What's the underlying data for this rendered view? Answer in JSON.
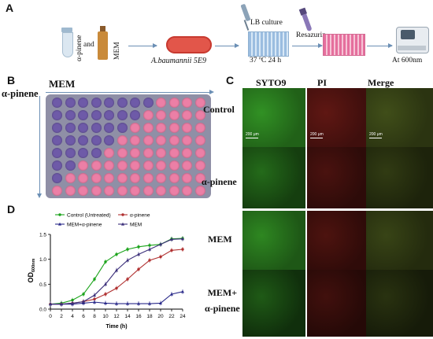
{
  "panels": {
    "a": "A",
    "b": "B",
    "c": "C",
    "d": "D"
  },
  "workflow": {
    "alpha_pinene": "α-pinene",
    "and": "and",
    "mem": "MEM",
    "bacterium": "A.baumannii 5E9",
    "lb_culture": "LB culture",
    "incubation": "37 ºC 24 h",
    "resazurin": "Resazurin",
    "readout": "At 600nm"
  },
  "plate": {
    "x_label": "MEM",
    "y_label": "α-pinene",
    "rows": [
      [
        "p",
        "p",
        "p",
        "p",
        "p",
        "p",
        "p",
        "p",
        "k",
        "k",
        "k",
        "k"
      ],
      [
        "p",
        "p",
        "p",
        "p",
        "p",
        "p",
        "p",
        "k",
        "k",
        "k",
        "k",
        "k"
      ],
      [
        "p",
        "p",
        "p",
        "p",
        "p",
        "p",
        "k",
        "k",
        "k",
        "k",
        "k",
        "k"
      ],
      [
        "p",
        "p",
        "p",
        "p",
        "p",
        "k",
        "k",
        "k",
        "k",
        "k",
        "k",
        "k"
      ],
      [
        "p",
        "p",
        "p",
        "p",
        "k",
        "k",
        "k",
        "k",
        "k",
        "k",
        "k",
        "k"
      ],
      [
        "p",
        "p",
        "k",
        "k",
        "k",
        "k",
        "k",
        "k",
        "k",
        "k",
        "k",
        "k"
      ],
      [
        "p",
        "k",
        "k",
        "k",
        "k",
        "k",
        "k",
        "k",
        "k",
        "k",
        "k",
        "k"
      ],
      [
        "k",
        "k",
        "k",
        "k",
        "k",
        "k",
        "k",
        "k",
        "k",
        "k",
        "k",
        "k"
      ]
    ],
    "colors": {
      "purple": "#6e5aa8",
      "pink": "#ec7fa6",
      "frame": "#8f8fa6"
    }
  },
  "microscopy": {
    "columns": [
      "SYTO9",
      "PI",
      "Merge"
    ],
    "rows": [
      "Control",
      "α-pinene",
      "MEM",
      "MEM+\nα-pinene"
    ],
    "scale_label": "200 μm",
    "colors": {
      "green": "#2f8a22",
      "red": "#5a1612",
      "merge": "#3d4a18"
    },
    "intensity": [
      [
        1.0,
        1.0,
        1.0
      ],
      [
        0.45,
        0.55,
        0.5
      ],
      [
        0.85,
        0.6,
        0.75
      ],
      [
        0.2,
        0.35,
        0.25
      ]
    ]
  },
  "chart_data": {
    "type": "line",
    "x": [
      0,
      2,
      4,
      6,
      8,
      10,
      12,
      14,
      16,
      18,
      20,
      22,
      24
    ],
    "xlabel": "Time (h)",
    "ylabel": "OD600nm",
    "ylabel_main": "OD",
    "ylabel_sub": "600nm",
    "xlim": [
      0,
      24
    ],
    "ylim": [
      0,
      1.5
    ],
    "xticks": [
      0,
      2,
      4,
      6,
      8,
      10,
      12,
      14,
      16,
      18,
      20,
      22,
      24
    ],
    "yticks": [
      0.0,
      0.5,
      1.0,
      1.5
    ],
    "ytick_labels": [
      "0.0",
      "0.5",
      "1.0",
      "1.5"
    ],
    "legend_position": "top",
    "series": [
      {
        "name": "Control (Untreated)",
        "color": "#1aa31a",
        "marker": "circle",
        "values": [
          0.1,
          0.12,
          0.18,
          0.3,
          0.6,
          0.95,
          1.1,
          1.2,
          1.25,
          1.28,
          1.3,
          1.41,
          1.42
        ]
      },
      {
        "name": "α-pinene",
        "color": "#b03030",
        "marker": "circle",
        "values": [
          0.1,
          0.1,
          0.12,
          0.15,
          0.2,
          0.3,
          0.42,
          0.6,
          0.8,
          0.98,
          1.05,
          1.18,
          1.2
        ]
      },
      {
        "name": "MEM+α-pinene",
        "color": "#2a2a8a",
        "marker": "triangle",
        "values": [
          0.1,
          0.1,
          0.1,
          0.12,
          0.14,
          0.12,
          0.11,
          0.11,
          0.11,
          0.11,
          0.12,
          0.3,
          0.35
        ]
      },
      {
        "name": "MEM",
        "color": "#3b2f7a",
        "marker": "triangle",
        "values": [
          0.1,
          0.1,
          0.12,
          0.15,
          0.28,
          0.5,
          0.78,
          0.98,
          1.1,
          1.2,
          1.3,
          1.4,
          1.41
        ]
      }
    ]
  }
}
